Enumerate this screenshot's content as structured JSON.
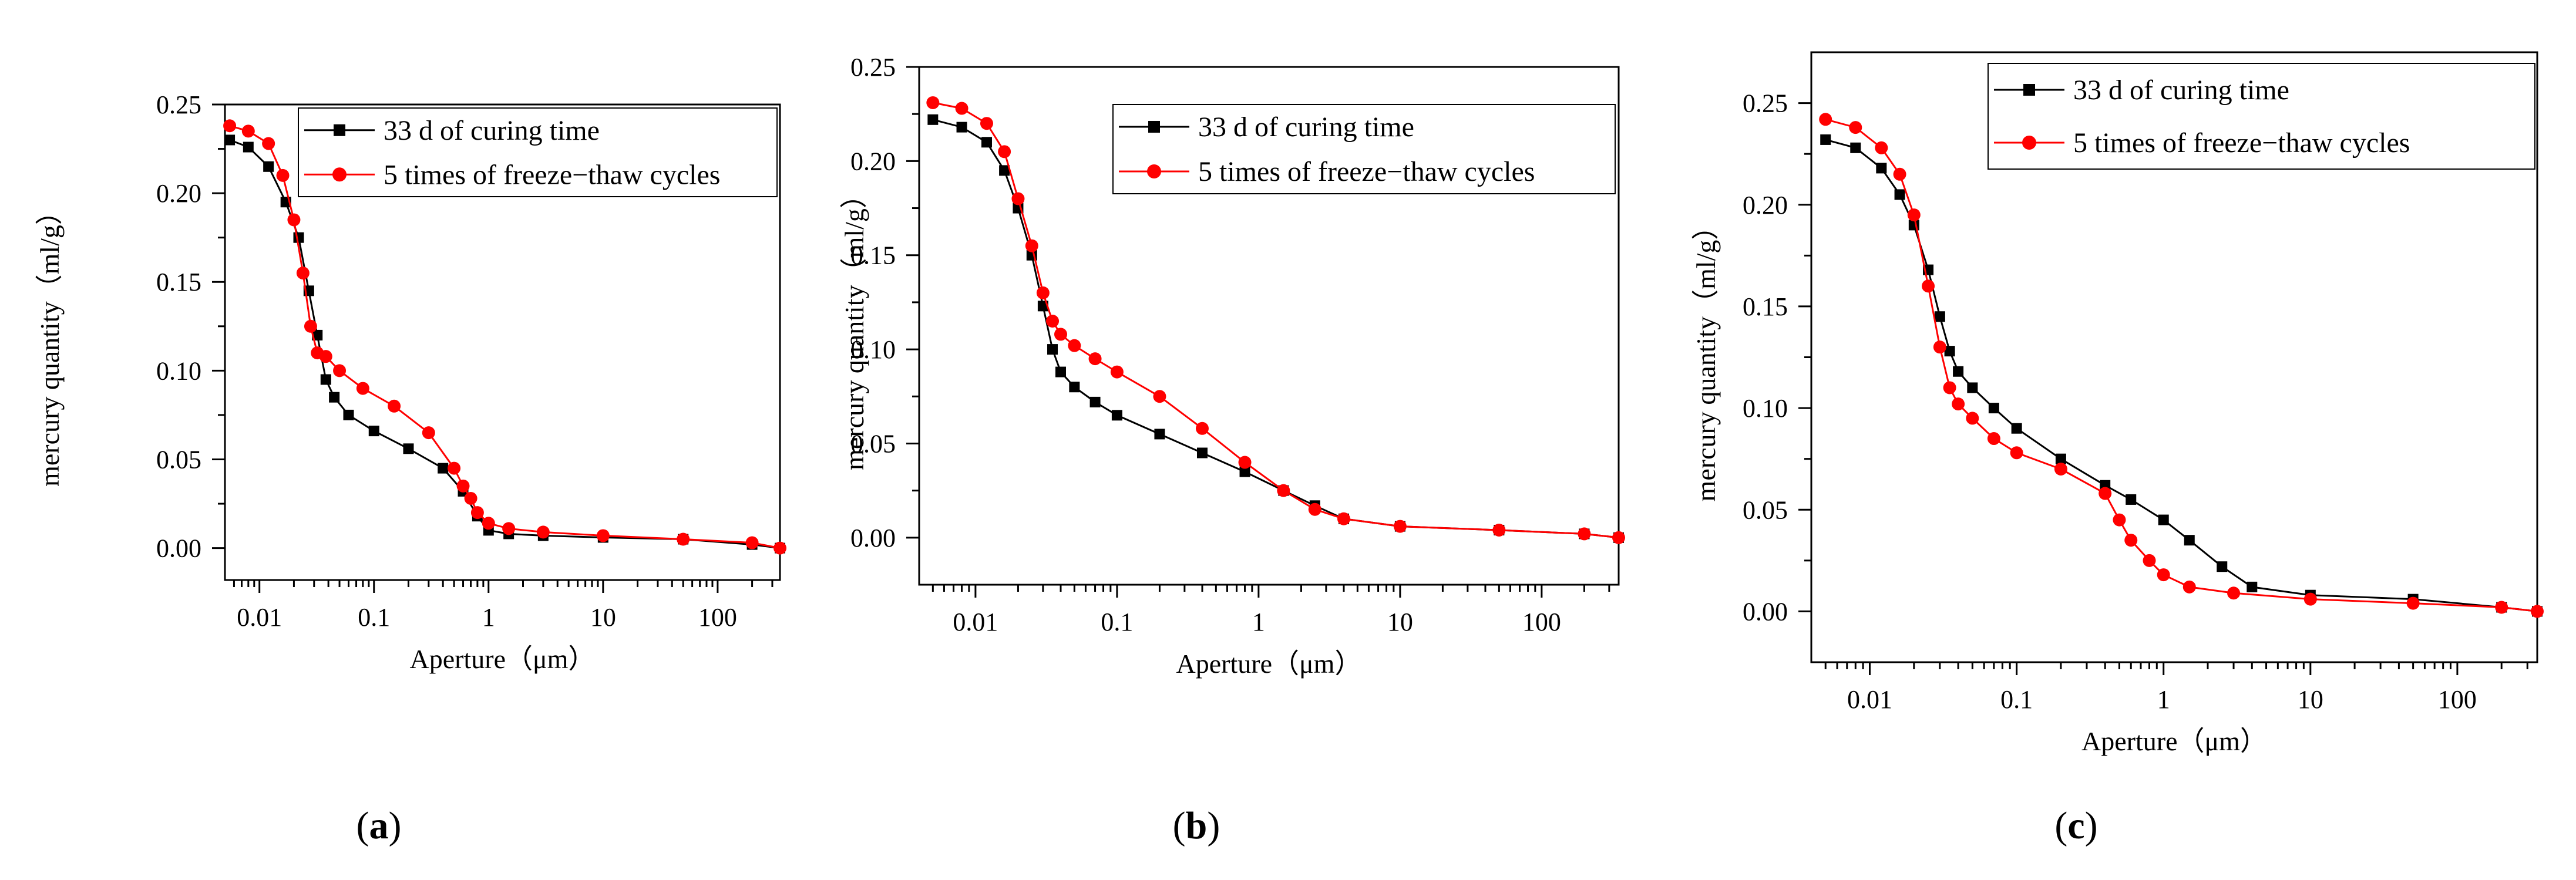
{
  "chart_data": [
    {
      "type": "line",
      "panel_label": "(a)",
      "panel_letter": "a",
      "xlabel": "Aperture（μm）",
      "ylabel": "mercury quantity（ml/g）",
      "xscale": "log",
      "xlim": [
        0.005,
        350
      ],
      "ylim": [
        -0.018,
        0.25
      ],
      "xticks": [
        {
          "value": 0.01,
          "label": "0.01"
        },
        {
          "value": 0.1,
          "label": "0.1"
        },
        {
          "value": 1,
          "label": "1"
        },
        {
          "value": 10,
          "label": "10"
        },
        {
          "value": 100,
          "label": "100"
        }
      ],
      "yticks": [
        {
          "value": 0.0,
          "label": "0.00"
        },
        {
          "value": 0.05,
          "label": "0.05"
        },
        {
          "value": 0.1,
          "label": "0.10"
        },
        {
          "value": 0.15,
          "label": "0.15"
        },
        {
          "value": 0.2,
          "label": "0.20"
        },
        {
          "value": 0.25,
          "label": "0.25"
        }
      ],
      "legend_position": "top-right",
      "series": [
        {
          "name": "33 d of curing time",
          "color": "#000000",
          "marker": "square",
          "x": [
            0.0055,
            0.008,
            0.012,
            0.017,
            0.022,
            0.027,
            0.032,
            0.038,
            0.045,
            0.06,
            0.1,
            0.2,
            0.4,
            0.6,
            0.8,
            1.0,
            1.5,
            3,
            10,
            50,
            200,
            350
          ],
          "y": [
            0.23,
            0.226,
            0.215,
            0.195,
            0.175,
            0.145,
            0.12,
            0.095,
            0.085,
            0.075,
            0.066,
            0.056,
            0.045,
            0.032,
            0.018,
            0.01,
            0.008,
            0.007,
            0.006,
            0.005,
            0.002,
            0.0
          ]
        },
        {
          "name": "5 times of freeze−thaw cycles",
          "color": "#ff0000",
          "marker": "circle",
          "x": [
            0.0055,
            0.008,
            0.012,
            0.016,
            0.02,
            0.024,
            0.028,
            0.032,
            0.038,
            0.05,
            0.08,
            0.15,
            0.3,
            0.5,
            0.6,
            0.7,
            0.8,
            1.0,
            1.5,
            3,
            10,
            50,
            200,
            350
          ],
          "y": [
            0.238,
            0.235,
            0.228,
            0.21,
            0.185,
            0.155,
            0.125,
            0.11,
            0.108,
            0.1,
            0.09,
            0.08,
            0.065,
            0.045,
            0.035,
            0.028,
            0.02,
            0.014,
            0.011,
            0.009,
            0.007,
            0.005,
            0.003,
            0.0
          ]
        }
      ]
    },
    {
      "type": "line",
      "panel_label": "(b)",
      "panel_letter": "b",
      "xlabel": "Aperture（μm）",
      "ylabel": "mercury quantity（ml/g）",
      "xscale": "log",
      "xlim": [
        0.004,
        350
      ],
      "ylim": [
        -0.025,
        0.25
      ],
      "xticks": [
        {
          "value": 0.01,
          "label": "0.01"
        },
        {
          "value": 0.1,
          "label": "0.1"
        },
        {
          "value": 1,
          "label": "1"
        },
        {
          "value": 10,
          "label": "10"
        },
        {
          "value": 100,
          "label": "100"
        }
      ],
      "yticks": [
        {
          "value": 0.0,
          "label": "0.00"
        },
        {
          "value": 0.05,
          "label": "0.05"
        },
        {
          "value": 0.1,
          "label": "0.10"
        },
        {
          "value": 0.15,
          "label": "0.15"
        },
        {
          "value": 0.2,
          "label": "0.20"
        },
        {
          "value": 0.25,
          "label": "0.25"
        }
      ],
      "legend_position": "top-right",
      "series": [
        {
          "name": "33 d of curing time",
          "color": "#000000",
          "marker": "square",
          "x": [
            0.005,
            0.008,
            0.012,
            0.016,
            0.02,
            0.025,
            0.03,
            0.035,
            0.04,
            0.05,
            0.07,
            0.1,
            0.2,
            0.4,
            0.8,
            1.5,
            2.5,
            4,
            10,
            50,
            200,
            350
          ],
          "y": [
            0.222,
            0.218,
            0.21,
            0.195,
            0.175,
            0.15,
            0.123,
            0.1,
            0.088,
            0.08,
            0.072,
            0.065,
            0.055,
            0.045,
            0.035,
            0.025,
            0.017,
            0.01,
            0.006,
            0.004,
            0.002,
            0.0
          ]
        },
        {
          "name": "5 times of freeze−thaw cycles",
          "color": "#ff0000",
          "marker": "circle",
          "x": [
            0.005,
            0.008,
            0.012,
            0.016,
            0.02,
            0.025,
            0.03,
            0.035,
            0.04,
            0.05,
            0.07,
            0.1,
            0.2,
            0.4,
            0.8,
            1.5,
            2.5,
            4,
            10,
            50,
            200,
            350
          ],
          "y": [
            0.231,
            0.228,
            0.22,
            0.205,
            0.18,
            0.155,
            0.13,
            0.115,
            0.108,
            0.102,
            0.095,
            0.088,
            0.075,
            0.058,
            0.04,
            0.025,
            0.015,
            0.01,
            0.006,
            0.004,
            0.002,
            0.0
          ]
        }
      ]
    },
    {
      "type": "line",
      "panel_label": "(c)",
      "panel_letter": "c",
      "xlabel": "Aperture（μm）",
      "ylabel": "mercury quantity（ml/g）",
      "xscale": "log",
      "xlim": [
        0.004,
        350
      ],
      "ylim": [
        -0.025,
        0.275
      ],
      "xticks": [
        {
          "value": 0.01,
          "label": "0.01"
        },
        {
          "value": 0.1,
          "label": "0.1"
        },
        {
          "value": 1,
          "label": "1"
        },
        {
          "value": 10,
          "label": "10"
        },
        {
          "value": 100,
          "label": "100"
        }
      ],
      "yticks": [
        {
          "value": 0.0,
          "label": "0.00"
        },
        {
          "value": 0.05,
          "label": "0.05"
        },
        {
          "value": 0.1,
          "label": "0.10"
        },
        {
          "value": 0.15,
          "label": "0.15"
        },
        {
          "value": 0.2,
          "label": "0.20"
        },
        {
          "value": 0.25,
          "label": "0.25"
        }
      ],
      "legend_position": "top-right",
      "series": [
        {
          "name": "33 d of curing time",
          "color": "#000000",
          "marker": "square",
          "x": [
            0.005,
            0.008,
            0.012,
            0.016,
            0.02,
            0.025,
            0.03,
            0.035,
            0.04,
            0.05,
            0.07,
            0.1,
            0.2,
            0.4,
            0.6,
            1.0,
            1.5,
            2.5,
            4,
            10,
            50,
            200,
            350
          ],
          "y": [
            0.232,
            0.228,
            0.218,
            0.205,
            0.19,
            0.168,
            0.145,
            0.128,
            0.118,
            0.11,
            0.1,
            0.09,
            0.075,
            0.062,
            0.055,
            0.045,
            0.035,
            0.022,
            0.012,
            0.008,
            0.006,
            0.002,
            0.0
          ]
        },
        {
          "name": "5 times of freeze−thaw cycles",
          "color": "#ff0000",
          "marker": "circle",
          "x": [
            0.005,
            0.008,
            0.012,
            0.016,
            0.02,
            0.025,
            0.03,
            0.035,
            0.04,
            0.05,
            0.07,
            0.1,
            0.2,
            0.4,
            0.5,
            0.6,
            0.8,
            1.0,
            1.5,
            3,
            10,
            50,
            200,
            350
          ],
          "y": [
            0.242,
            0.238,
            0.228,
            0.215,
            0.195,
            0.16,
            0.13,
            0.11,
            0.102,
            0.095,
            0.085,
            0.078,
            0.07,
            0.058,
            0.045,
            0.035,
            0.025,
            0.018,
            0.012,
            0.009,
            0.006,
            0.004,
            0.002,
            0.0
          ]
        }
      ]
    }
  ]
}
